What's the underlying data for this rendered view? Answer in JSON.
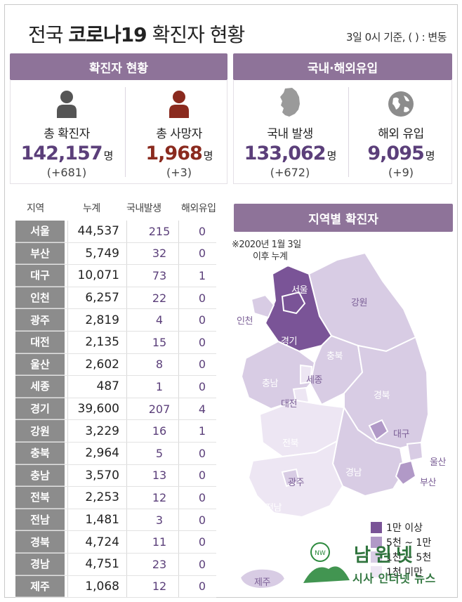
{
  "title": {
    "prefix": "전국 ",
    "bold": "코로나19",
    "suffix": " 확진자 현황"
  },
  "subnote": "3일 0시 기준, ( ) : 변동",
  "panels": {
    "confirmed_head": "확진자 현황",
    "origin_head": "국내·해외유입"
  },
  "stats": [
    {
      "label": "총 확진자",
      "value": "142,157",
      "unit": "명",
      "change": "(+681)"
    },
    {
      "label": "총 사망자",
      "value": "1,968",
      "unit": "명",
      "change": "(+3)"
    },
    {
      "label": "국내 발생",
      "value": "133,062",
      "unit": "명",
      "change": "(+672)"
    },
    {
      "label": "해외 유입",
      "value": "9,095",
      "unit": "명",
      "change": "(+9)"
    }
  ],
  "table": {
    "headers": [
      "지역",
      "누계",
      "국내발생",
      "해외유입"
    ],
    "rows": [
      {
        "region": "서울",
        "total": "44,537",
        "domestic": "215",
        "overseas": "0"
      },
      {
        "region": "부산",
        "total": "5,749",
        "domestic": "32",
        "overseas": "0"
      },
      {
        "region": "대구",
        "total": "10,071",
        "domestic": "73",
        "overseas": "1"
      },
      {
        "region": "인천",
        "total": "6,257",
        "domestic": "22",
        "overseas": "0"
      },
      {
        "region": "광주",
        "total": "2,819",
        "domestic": "4",
        "overseas": "0"
      },
      {
        "region": "대전",
        "total": "2,135",
        "domestic": "15",
        "overseas": "0"
      },
      {
        "region": "울산",
        "total": "2,602",
        "domestic": "8",
        "overseas": "0"
      },
      {
        "region": "세종",
        "total": "487",
        "domestic": "1",
        "overseas": "0"
      },
      {
        "region": "경기",
        "total": "39,600",
        "domestic": "207",
        "overseas": "4"
      },
      {
        "region": "강원",
        "total": "3,229",
        "domestic": "16",
        "overseas": "1"
      },
      {
        "region": "충북",
        "total": "2,964",
        "domestic": "5",
        "overseas": "0"
      },
      {
        "region": "충남",
        "total": "3,570",
        "domestic": "13",
        "overseas": "0"
      },
      {
        "region": "전북",
        "total": "2,253",
        "domestic": "12",
        "overseas": "0"
      },
      {
        "region": "전남",
        "total": "1,481",
        "domestic": "3",
        "overseas": "0"
      },
      {
        "region": "경북",
        "total": "4,724",
        "domestic": "11",
        "overseas": "0"
      },
      {
        "region": "경남",
        "total": "4,751",
        "domestic": "23",
        "overseas": "0"
      },
      {
        "region": "제주",
        "total": "1,068",
        "domestic": "12",
        "overseas": "0"
      }
    ]
  },
  "map": {
    "head": "지역별 확진자",
    "note_line1": "※2020년 1월 3일",
    "note_line2": "이후 누계",
    "labels": {
      "seoul": "서울",
      "incheon": "인천",
      "gyeonggi": "경기",
      "gangwon": "강원",
      "chungbuk": "충북",
      "sejong": "세종",
      "chungnam": "충남",
      "daejeon": "대전",
      "gyeongbuk": "경북",
      "daegu": "대구",
      "jeonbuk": "전북",
      "ulsan": "울산",
      "busan": "부산",
      "gyeongnam": "경남",
      "gwangju": "광주",
      "jeonnam": "전남",
      "jeju": "제주"
    },
    "legend": [
      "1만 이상",
      "5천 ~ 1만",
      "1천 ~ 5천",
      "1천 미만"
    ],
    "colors": {
      "high": "#7a5497",
      "mid": "#b199c7",
      "low": "#d8cce4",
      "lowest": "#ede6f3",
      "sea_border": "#ffffff"
    }
  },
  "watermark": {
    "name": "남원넷",
    "sub": "시사 인터넷 뉴스"
  },
  "colors": {
    "accent": "#8e7399",
    "number": "#5b3f7a",
    "death": "#8a2a1e",
    "region_bg": "#8c8c8c"
  }
}
